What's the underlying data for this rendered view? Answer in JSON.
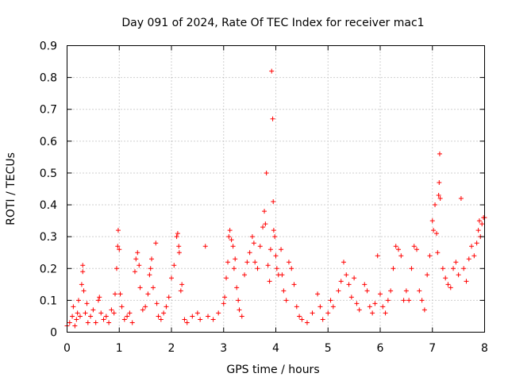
{
  "chart_data": {
    "type": "scatter",
    "title": "Day 091 of 2024, Rate Of TEC Index for receiver mac1",
    "xlabel": "GPS time / hours",
    "ylabel": "ROTI / TECUs",
    "xlim": [
      0,
      8
    ],
    "ylim": [
      0,
      0.9
    ],
    "xticks": [
      "0",
      "1",
      "2",
      "3",
      "4",
      "5",
      "6",
      "7",
      "8"
    ],
    "yticks": [
      "0",
      "0.1",
      "0.2",
      "0.3",
      "0.4",
      "0.5",
      "0.6",
      "0.7",
      "0.8",
      "0.9"
    ],
    "grid": true,
    "marker": "+",
    "color": "#ff0000",
    "series": [
      {
        "points": [
          [
            0.0,
            0.02
          ],
          [
            0.05,
            0.03
          ],
          [
            0.1,
            0.05
          ],
          [
            0.12,
            0.08
          ],
          [
            0.15,
            0.02
          ],
          [
            0.18,
            0.04
          ],
          [
            0.2,
            0.06
          ],
          [
            0.22,
            0.1
          ],
          [
            0.25,
            0.05
          ],
          [
            0.28,
            0.15
          ],
          [
            0.3,
            0.21
          ],
          [
            0.3,
            0.19
          ],
          [
            0.32,
            0.13
          ],
          [
            0.35,
            0.06
          ],
          [
            0.38,
            0.09
          ],
          [
            0.4,
            0.03
          ],
          [
            0.45,
            0.05
          ],
          [
            0.5,
            0.07
          ],
          [
            0.55,
            0.03
          ],
          [
            0.6,
            0.1
          ],
          [
            0.62,
            0.11
          ],
          [
            0.65,
            0.06
          ],
          [
            0.7,
            0.04
          ],
          [
            0.75,
            0.05
          ],
          [
            0.8,
            0.03
          ],
          [
            0.85,
            0.07
          ],
          [
            0.9,
            0.06
          ],
          [
            0.92,
            0.12
          ],
          [
            0.95,
            0.2
          ],
          [
            0.97,
            0.27
          ],
          [
            0.98,
            0.32
          ],
          [
            1.0,
            0.26
          ],
          [
            1.02,
            0.12
          ],
          [
            1.05,
            0.08
          ],
          [
            1.1,
            0.04
          ],
          [
            1.15,
            0.05
          ],
          [
            1.2,
            0.06
          ],
          [
            1.25,
            0.03
          ],
          [
            1.3,
            0.19
          ],
          [
            1.32,
            0.23
          ],
          [
            1.35,
            0.25
          ],
          [
            1.38,
            0.21
          ],
          [
            1.4,
            0.14
          ],
          [
            1.45,
            0.07
          ],
          [
            1.5,
            0.08
          ],
          [
            1.55,
            0.12
          ],
          [
            1.58,
            0.18
          ],
          [
            1.6,
            0.2
          ],
          [
            1.62,
            0.23
          ],
          [
            1.65,
            0.14
          ],
          [
            1.7,
            0.28
          ],
          [
            1.72,
            0.09
          ],
          [
            1.75,
            0.05
          ],
          [
            1.8,
            0.04
          ],
          [
            1.85,
            0.06
          ],
          [
            1.9,
            0.08
          ],
          [
            1.95,
            0.11
          ],
          [
            2.0,
            0.17
          ],
          [
            2.05,
            0.21
          ],
          [
            2.1,
            0.3
          ],
          [
            2.12,
            0.31
          ],
          [
            2.14,
            0.27
          ],
          [
            2.15,
            0.25
          ],
          [
            2.18,
            0.13
          ],
          [
            2.2,
            0.15
          ],
          [
            2.25,
            0.04
          ],
          [
            2.3,
            0.03
          ],
          [
            2.4,
            0.05
          ],
          [
            2.5,
            0.06
          ],
          [
            2.55,
            0.04
          ],
          [
            2.65,
            0.27
          ],
          [
            2.7,
            0.05
          ],
          [
            2.8,
            0.04
          ],
          [
            2.9,
            0.06
          ],
          [
            3.0,
            0.09
          ],
          [
            3.02,
            0.11
          ],
          [
            3.05,
            0.17
          ],
          [
            3.08,
            0.22
          ],
          [
            3.1,
            0.3
          ],
          [
            3.12,
            0.32
          ],
          [
            3.15,
            0.29
          ],
          [
            3.18,
            0.27
          ],
          [
            3.2,
            0.2
          ],
          [
            3.22,
            0.23
          ],
          [
            3.25,
            0.14
          ],
          [
            3.28,
            0.1
          ],
          [
            3.3,
            0.07
          ],
          [
            3.35,
            0.05
          ],
          [
            3.4,
            0.18
          ],
          [
            3.45,
            0.22
          ],
          [
            3.5,
            0.25
          ],
          [
            3.55,
            0.3
          ],
          [
            3.58,
            0.28
          ],
          [
            3.6,
            0.22
          ],
          [
            3.65,
            0.2
          ],
          [
            3.7,
            0.27
          ],
          [
            3.75,
            0.33
          ],
          [
            3.78,
            0.38
          ],
          [
            3.8,
            0.34
          ],
          [
            3.82,
            0.5
          ],
          [
            3.85,
            0.21
          ],
          [
            3.88,
            0.16
          ],
          [
            3.9,
            0.26
          ],
          [
            3.92,
            0.82
          ],
          [
            3.94,
            0.67
          ],
          [
            3.95,
            0.41
          ],
          [
            3.96,
            0.32
          ],
          [
            3.98,
            0.3
          ],
          [
            4.0,
            0.24
          ],
          [
            4.02,
            0.2
          ],
          [
            4.05,
            0.18
          ],
          [
            4.1,
            0.26
          ],
          [
            4.12,
            0.18
          ],
          [
            4.15,
            0.13
          ],
          [
            4.2,
            0.1
          ],
          [
            4.25,
            0.22
          ],
          [
            4.3,
            0.2
          ],
          [
            4.35,
            0.15
          ],
          [
            4.4,
            0.08
          ],
          [
            4.45,
            0.05
          ],
          [
            4.5,
            0.04
          ],
          [
            4.6,
            0.03
          ],
          [
            4.7,
            0.06
          ],
          [
            4.8,
            0.12
          ],
          [
            4.85,
            0.08
          ],
          [
            4.9,
            0.04
          ],
          [
            5.0,
            0.06
          ],
          [
            5.05,
            0.1
          ],
          [
            5.1,
            0.08
          ],
          [
            5.2,
            0.13
          ],
          [
            5.25,
            0.16
          ],
          [
            5.3,
            0.22
          ],
          [
            5.35,
            0.18
          ],
          [
            5.4,
            0.15
          ],
          [
            5.45,
            0.11
          ],
          [
            5.5,
            0.17
          ],
          [
            5.55,
            0.09
          ],
          [
            5.6,
            0.07
          ],
          [
            5.7,
            0.15
          ],
          [
            5.75,
            0.13
          ],
          [
            5.8,
            0.08
          ],
          [
            5.85,
            0.06
          ],
          [
            5.9,
            0.09
          ],
          [
            5.95,
            0.24
          ],
          [
            6.0,
            0.12
          ],
          [
            6.05,
            0.08
          ],
          [
            6.1,
            0.06
          ],
          [
            6.15,
            0.1
          ],
          [
            6.2,
            0.13
          ],
          [
            6.25,
            0.2
          ],
          [
            6.3,
            0.27
          ],
          [
            6.35,
            0.26
          ],
          [
            6.4,
            0.24
          ],
          [
            6.45,
            0.1
          ],
          [
            6.5,
            0.13
          ],
          [
            6.55,
            0.1
          ],
          [
            6.6,
            0.2
          ],
          [
            6.65,
            0.27
          ],
          [
            6.7,
            0.26
          ],
          [
            6.75,
            0.13
          ],
          [
            6.8,
            0.1
          ],
          [
            6.85,
            0.07
          ],
          [
            6.9,
            0.18
          ],
          [
            6.95,
            0.24
          ],
          [
            7.0,
            0.35
          ],
          [
            7.02,
            0.32
          ],
          [
            7.05,
            0.4
          ],
          [
            7.08,
            0.31
          ],
          [
            7.1,
            0.25
          ],
          [
            7.12,
            0.43
          ],
          [
            7.13,
            0.47
          ],
          [
            7.14,
            0.56
          ],
          [
            7.15,
            0.42
          ],
          [
            7.2,
            0.2
          ],
          [
            7.25,
            0.17
          ],
          [
            7.3,
            0.15
          ],
          [
            7.35,
            0.14
          ],
          [
            7.4,
            0.2
          ],
          [
            7.45,
            0.22
          ],
          [
            7.5,
            0.18
          ],
          [
            7.55,
            0.42
          ],
          [
            7.6,
            0.2
          ],
          [
            7.65,
            0.16
          ],
          [
            7.7,
            0.23
          ],
          [
            7.75,
            0.27
          ],
          [
            7.8,
            0.24
          ],
          [
            7.85,
            0.28
          ],
          [
            7.88,
            0.32
          ],
          [
            7.9,
            0.35
          ],
          [
            7.92,
            0.3
          ],
          [
            7.95,
            0.34
          ],
          [
            7.98,
            0.36
          ],
          [
            8.0,
            0.36
          ]
        ]
      }
    ]
  }
}
